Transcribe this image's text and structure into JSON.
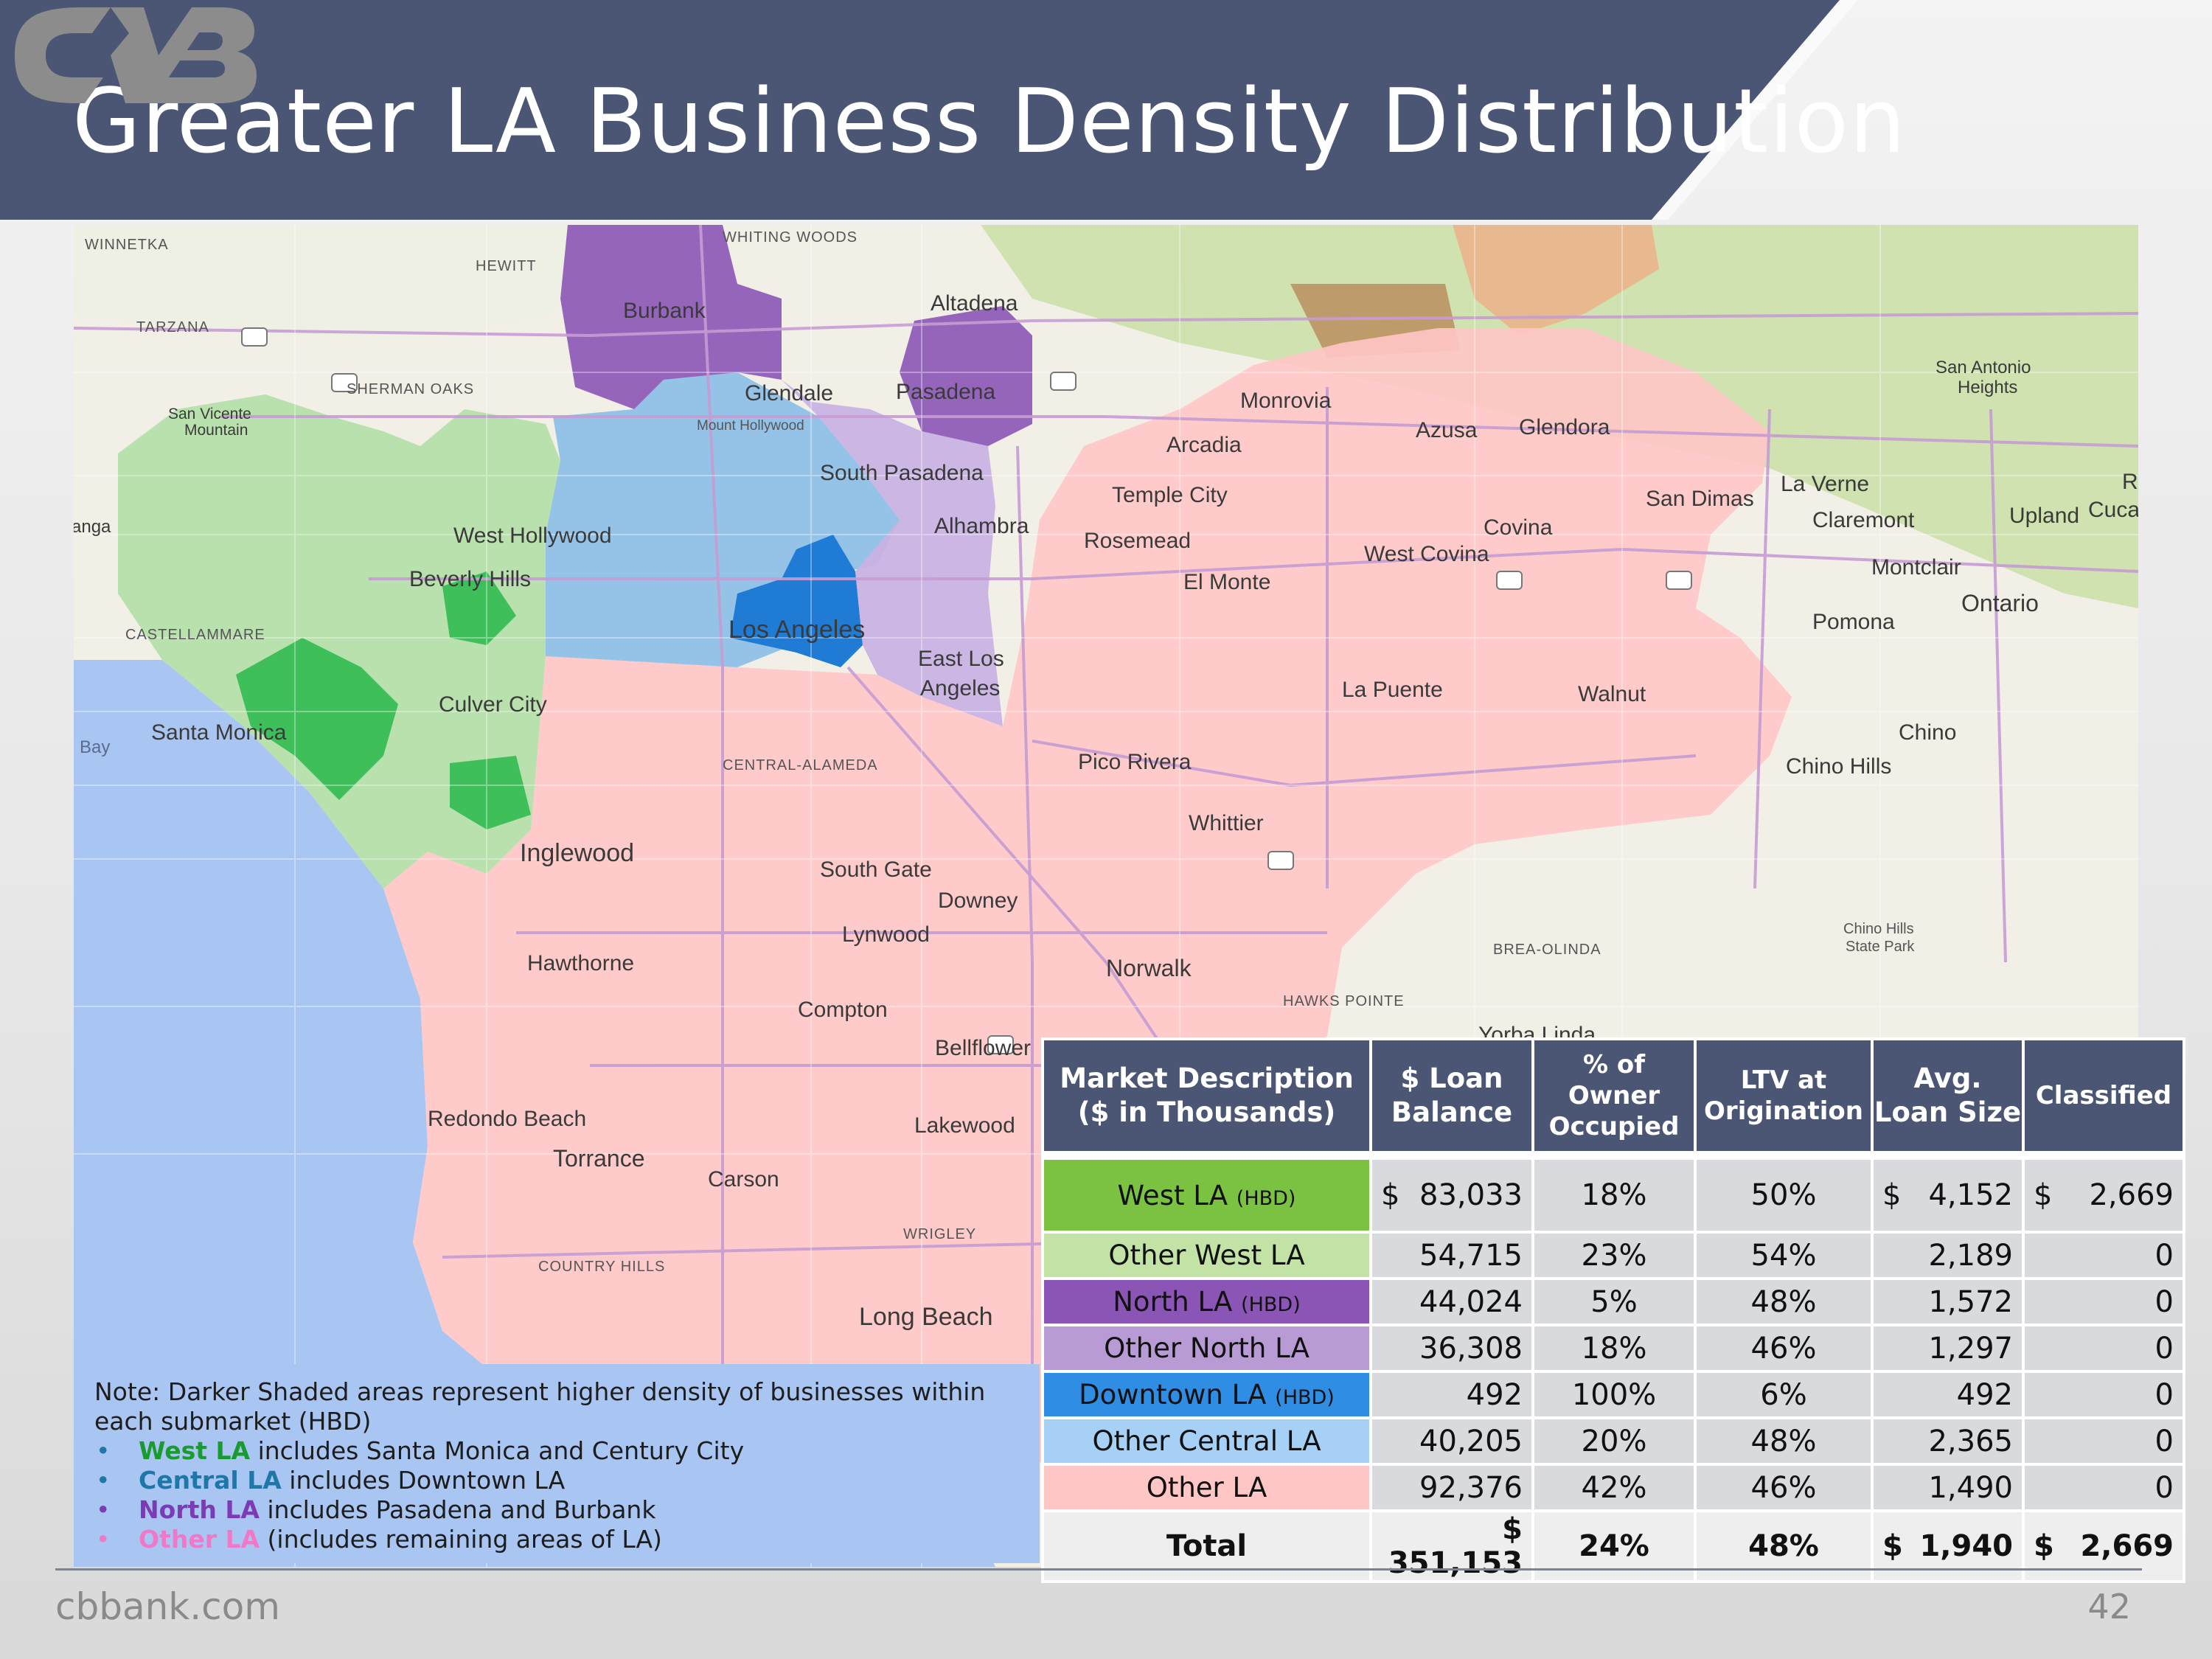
{
  "title": "Greater LA Business Density Distribution",
  "colors": {
    "header": "#4a5673",
    "west_hbd": "#7cc242",
    "other_west": "#c3e2a6",
    "north_hbd": "#8b55b6",
    "other_north": "#b89bd5",
    "downtown_hbd": "#2f8de4",
    "other_central": "#a6d0f6",
    "other_la": "#ffc6c6",
    "ocean": "#a9c6f3"
  },
  "map": {
    "icons": [
      "freeway-shield-icon",
      "logo-icon"
    ],
    "cities": [
      "Burbank",
      "Altadena",
      "Glendale",
      "Pasadena",
      "Monrovia",
      "Azusa",
      "Glendora",
      "Arcadia",
      "South Pasadena",
      "Temple City",
      "San Dimas",
      "La Verne",
      "Claremont",
      "Upland",
      "West Hollywood",
      "Alhambra",
      "Rosemead",
      "Covina",
      "Beverly Hills",
      "El Monte",
      "West Covina",
      "Montclair",
      "Ontario",
      "Los Angeles",
      "East Los",
      "Angeles",
      "Pomona",
      "Culver City",
      "La Puente",
      "Walnut",
      "Santa Monica",
      "Chino",
      "Chino Hills",
      "Pico Rivera",
      "Whittier",
      "Inglewood",
      "South Gate",
      "Downey",
      "Lynwood",
      "Hawthorne",
      "Norwalk",
      "Compton",
      "Bellflower",
      "Redondo Beach",
      "Lakewood",
      "Torrance",
      "Carson",
      "Long Beach",
      "Yorba Linda",
      "San Antonio",
      "Heights",
      "San Vicente",
      "Mountain",
      "Bay",
      "Ra",
      "Cuca"
    ],
    "small_labels": [
      "WINNETKA",
      "WHITING WOODS",
      "HEWITT",
      "TARZANA",
      "SHERMAN OAKS",
      "Mount Hollywood",
      "CASTELLAMMARE",
      "CENTRAL-ALAMEDA",
      "WRIGLEY",
      "COUNTRY HILLS",
      "BREA-OLINDA",
      "HAWKS POINTE",
      "Chino Hills",
      "State Park",
      "anga"
    ]
  },
  "note": {
    "text": "Note: Darker Shaded areas represent higher density of businesses within each submarket (HBD)",
    "bullets": [
      {
        "highlight": "West LA",
        "rest": " includes Santa Monica and Century City"
      },
      {
        "highlight": "Central LA",
        "rest": " includes Downtown LA"
      },
      {
        "highlight": "North LA",
        "rest": " includes Pasadena and Burbank"
      },
      {
        "highlight": "Other LA",
        "rest": " (includes remaining areas of LA)"
      }
    ]
  },
  "table": {
    "headers": {
      "market": [
        "Market Description",
        "($ in Thousands)"
      ],
      "loan": [
        "$ Loan",
        "Balance"
      ],
      "owner": [
        "% of",
        "Owner",
        "Occupied"
      ],
      "ltv": [
        "LTV at",
        "Origination"
      ],
      "avg": [
        "Avg.",
        "Loan Size"
      ],
      "classified": "Classified"
    },
    "rows": [
      {
        "name": "West LA",
        "hbd": "(HBD)",
        "loan_dollar": "$",
        "loan": "83,033",
        "owner": "18%",
        "ltv": "50%",
        "avg_dollar": "$",
        "avg": "4,152",
        "cls_dollar": "$",
        "classified": "2,669",
        "color": "#7cc242"
      },
      {
        "name": "Other West LA",
        "hbd": "",
        "loan_dollar": "",
        "loan": "54,715",
        "owner": "23%",
        "ltv": "54%",
        "avg_dollar": "",
        "avg": "2,189",
        "cls_dollar": "",
        "classified": "0",
        "color": "#c3e2a6"
      },
      {
        "name": "North LA",
        "hbd": "(HBD)",
        "loan_dollar": "",
        "loan": "44,024",
        "owner": "5%",
        "ltv": "48%",
        "avg_dollar": "",
        "avg": "1,572",
        "cls_dollar": "",
        "classified": "0",
        "color": "#8b55b6"
      },
      {
        "name": "Other North LA",
        "hbd": "",
        "loan_dollar": "",
        "loan": "36,308",
        "owner": "18%",
        "ltv": "46%",
        "avg_dollar": "",
        "avg": "1,297",
        "cls_dollar": "",
        "classified": "0",
        "color": "#b89bd5"
      },
      {
        "name": "Downtown LA",
        "hbd": "(HBD)",
        "loan_dollar": "",
        "loan": "492",
        "owner": "100%",
        "ltv": "6%",
        "avg_dollar": "",
        "avg": "492",
        "cls_dollar": "",
        "classified": "0",
        "color": "#2f8de4"
      },
      {
        "name": "Other Central LA",
        "hbd": "",
        "loan_dollar": "",
        "loan": "40,205",
        "owner": "20%",
        "ltv": "48%",
        "avg_dollar": "",
        "avg": "2,365",
        "cls_dollar": "",
        "classified": "0",
        "color": "#a6d0f6"
      },
      {
        "name": "Other LA",
        "hbd": "",
        "loan_dollar": "",
        "loan": "92,376",
        "owner": "42%",
        "ltv": "46%",
        "avg_dollar": "",
        "avg": "1,490",
        "cls_dollar": "",
        "classified": "0",
        "color": "#ffc6c6"
      }
    ],
    "total": {
      "name": "Total",
      "loan": "$ 351,153",
      "owner": "24%",
      "ltv": "48%",
      "avg_dollar": "$",
      "avg": "1,940",
      "cls_dollar": "$",
      "classified": "2,669"
    }
  },
  "footer": {
    "site": "cbbank.com",
    "page": "42"
  }
}
